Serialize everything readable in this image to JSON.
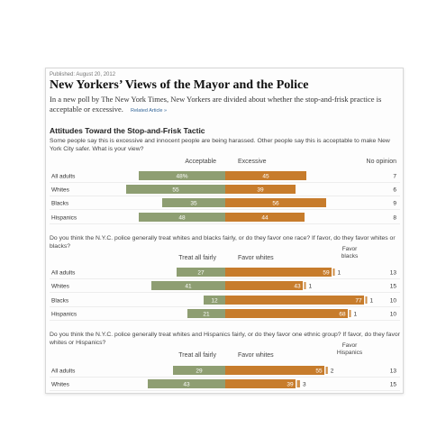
{
  "article": {
    "published": "Published: August 20, 2012",
    "headline": "New Yorkers’ Views of the Mayor and the Police",
    "dek": "In a new poll by The New York Times, New Yorkers are divided about whether the stop-and-frisk practice is acceptable or excessive.",
    "related_link": "Related Article »",
    "section_title": "Attitudes Toward the Stop-and-Frisk Tactic"
  },
  "colors": {
    "green": "#8e9e72",
    "orange": "#c77c2c",
    "rule": "#dddddd"
  },
  "chart_data": [
    {
      "type": "bar",
      "question": "Some people say this is excessive and innocent people are being harassed. Other people say this is acceptable to make New York City safer. What is your view?",
      "categories": [
        "All adults",
        "Whites",
        "Blacks",
        "Hispanics"
      ],
      "series": [
        {
          "name": "Acceptable",
          "values": [
            48,
            55,
            35,
            48
          ],
          "labels": [
            "48%",
            "55",
            "35",
            "48"
          ]
        },
        {
          "name": "Excessive",
          "values": [
            45,
            39,
            56,
            44
          ],
          "labels": [
            "45",
            "39",
            "56",
            "44"
          ]
        }
      ],
      "extra_column": {
        "name": "No opinion",
        "values": [
          7,
          6,
          9,
          8
        ]
      }
    },
    {
      "type": "bar",
      "question": "Do you think the N.Y.C. police generally treat whites and blacks fairly, or do they favor one race? If favor, do they favor whites or blacks?",
      "categories": [
        "All adults",
        "Whites",
        "Blacks",
        "Hispanics"
      ],
      "series": [
        {
          "name": "Treat all fairly",
          "values": [
            27,
            41,
            12,
            21
          ],
          "labels": [
            "27",
            "41",
            "12",
            "21"
          ]
        },
        {
          "name": "Favor whites",
          "values": [
            59,
            43,
            77,
            68
          ],
          "labels": [
            "59",
            "43",
            "77",
            "68"
          ]
        },
        {
          "name": "Favor blacks",
          "values": [
            1,
            1,
            1,
            1
          ],
          "labels": [
            "1",
            "1",
            "1",
            "1"
          ]
        }
      ],
      "extra_column": {
        "name": "",
        "values": [
          13,
          15,
          10,
          10
        ]
      }
    },
    {
      "type": "bar",
      "question": "Do you think the N.Y.C. police generally treat whites and Hispanics fairly, or do they favor one ethnic group? If favor, do they favor whites or Hispanics?",
      "categories": [
        "All adults",
        "Whites"
      ],
      "series": [
        {
          "name": "Treat all fairly",
          "values": [
            29,
            43
          ],
          "labels": [
            "29",
            "43"
          ]
        },
        {
          "name": "Favor whites",
          "values": [
            55,
            39
          ],
          "labels": [
            "55",
            "39"
          ]
        },
        {
          "name": "Favor Hispanics",
          "values": [
            2,
            3
          ],
          "labels": [
            "2",
            "3"
          ]
        }
      ],
      "extra_column": {
        "name": "",
        "values": [
          13,
          15
        ]
      }
    }
  ]
}
